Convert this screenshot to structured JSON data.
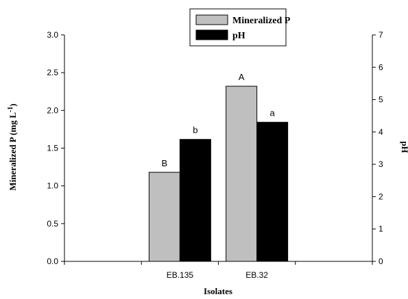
{
  "chart_data": {
    "type": "bar",
    "categories": [
      "",
      "EB.135",
      "EB.32",
      ""
    ],
    "xlabel": "Isolates",
    "ylabel": "Mineralized P (mg L⁻¹)",
    "ylabel_left_text": "Mineralized P  (mg L",
    "ylabel_left_sup": "-1",
    "ylabel_left_close": ")",
    "y2label": "pH",
    "ylim": [
      0,
      3.0
    ],
    "y2lim": [
      0,
      7
    ],
    "yticks": [
      "0.0",
      "0.5",
      "1.0",
      "1.5",
      "2.0",
      "2.5",
      "3.0"
    ],
    "y2ticks": [
      "0",
      "1",
      "2",
      "3",
      "4",
      "5",
      "6",
      "7"
    ],
    "legend_position": "top-center",
    "grid": false,
    "series": [
      {
        "name": "Mineralized P",
        "axis": "left",
        "color": "#bfbfbf",
        "values": [
          null,
          1.18,
          2.32,
          null
        ],
        "labels": [
          "",
          "B",
          "A",
          ""
        ]
      },
      {
        "name": "pH",
        "axis": "right",
        "color": "#000000",
        "values": [
          null,
          3.77,
          4.3,
          null
        ],
        "labels": [
          "",
          "b",
          "a",
          ""
        ]
      }
    ]
  }
}
